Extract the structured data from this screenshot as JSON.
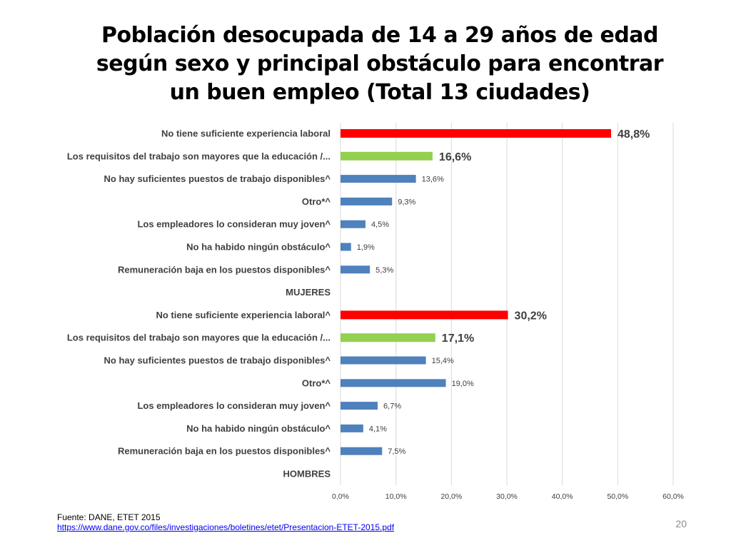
{
  "title": {
    "line1": "Población desocupada de 14 a 29 años de edad",
    "line2": "según sexo y principal obstáculo para encontrar",
    "line3": "un buen empleo (Total 13 ciudades)"
  },
  "colors": {
    "highlight_red": "#ff0000",
    "highlight_green": "#92d050",
    "default_blue": "#4f81bd",
    "grid": "#d9d9d9"
  },
  "chart_data": {
    "type": "bar",
    "orientation": "horizontal",
    "xlim": [
      0,
      60
    ],
    "x_ticks": [
      "0,0%",
      "10,0%",
      "20,0%",
      "30,0%",
      "40,0%",
      "50,0%",
      "60,0%"
    ],
    "grid": true,
    "categories": [
      {
        "label": "No tiene suficiente experiencia laboral",
        "value": 48.8,
        "value_label": "48,8%",
        "color": "red"
      },
      {
        "label": "Los requisitos del trabajo son mayores que la educación /...",
        "value": 16.6,
        "value_label": "16,6%",
        "color": "green"
      },
      {
        "label": "No hay suficientes puestos de trabajo disponibles^",
        "value": 13.6,
        "value_label": "13,6%",
        "color": "blue"
      },
      {
        "label": "Otro*^",
        "value": 9.3,
        "value_label": "9,3%",
        "color": "blue"
      },
      {
        "label": "Los empleadores lo consideran muy joven^",
        "value": 4.5,
        "value_label": "4,5%",
        "color": "blue"
      },
      {
        "label": "No ha habido ningún obstáculo^",
        "value": 1.9,
        "value_label": "1,9%",
        "color": "blue"
      },
      {
        "label": "Remuneración baja en los puestos disponibles^",
        "value": 5.3,
        "value_label": "5,3%",
        "color": "blue"
      },
      {
        "label": "MUJERES",
        "value": null,
        "value_label": "",
        "color": "none"
      },
      {
        "label": "No tiene suficiente experiencia laboral^",
        "value": 30.2,
        "value_label": "30,2%",
        "color": "red"
      },
      {
        "label": "Los requisitos del trabajo son mayores que la educación /...",
        "value": 17.1,
        "value_label": "17,1%",
        "color": "green"
      },
      {
        "label": "No hay suficientes puestos de trabajo disponibles^",
        "value": 15.4,
        "value_label": "15,4%",
        "color": "blue"
      },
      {
        "label": "Otro*^",
        "value": 19.0,
        "value_label": "19,0%",
        "color": "blue"
      },
      {
        "label": "Los empleadores lo consideran muy joven^",
        "value": 6.7,
        "value_label": "6,7%",
        "color": "blue"
      },
      {
        "label": "No ha habido ningún obstáculo^",
        "value": 4.1,
        "value_label": "4,1%",
        "color": "blue"
      },
      {
        "label": "Remuneración baja en los puestos disponibles^",
        "value": 7.5,
        "value_label": "7,5%",
        "color": "blue"
      },
      {
        "label": "HOMBRES",
        "value": null,
        "value_label": "",
        "color": "none"
      }
    ]
  },
  "footer": {
    "source": "Fuente: DANE, ETET 2015",
    "link": "https://www.dane.gov.co/files/investigaciones/boletines/etet/Presentacion-ETET-2015.pdf"
  },
  "slide_number": "20"
}
